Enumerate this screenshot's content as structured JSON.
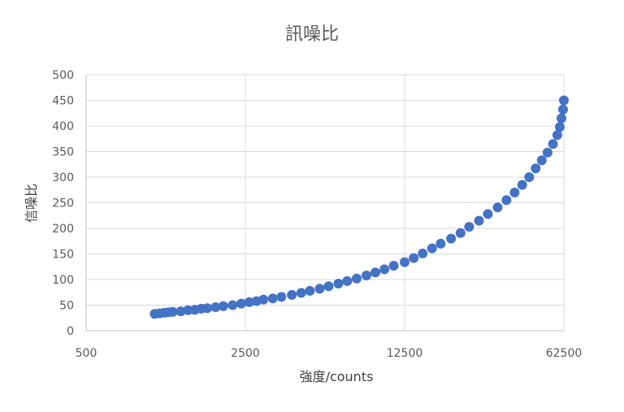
{
  "chart_data": {
    "type": "scatter",
    "title": "訊噪比",
    "xlabel": "強度/counts",
    "ylabel": "信噪比",
    "x_scale": "log5",
    "xlim": [
      500,
      62500
    ],
    "ylim": [
      0,
      500
    ],
    "x_ticks": [
      "500",
      "2500",
      "12500",
      "62500"
    ],
    "y_ticks": [
      "0",
      "50",
      "100",
      "150",
      "200",
      "250",
      "300",
      "350",
      "400",
      "450",
      "500"
    ],
    "grid": true,
    "legend": "none",
    "marker_color": "#4472C4",
    "series": [
      {
        "points": [
          [
            1000,
            33
          ],
          [
            1050,
            34
          ],
          [
            1100,
            35
          ],
          [
            1150,
            36
          ],
          [
            1200,
            37
          ],
          [
            1300,
            38
          ],
          [
            1400,
            40
          ],
          [
            1500,
            41
          ],
          [
            1600,
            43
          ],
          [
            1700,
            44
          ],
          [
            1850,
            46
          ],
          [
            2000,
            48
          ],
          [
            2200,
            50
          ],
          [
            2400,
            53
          ],
          [
            2600,
            56
          ],
          [
            2800,
            58
          ],
          [
            3000,
            61
          ],
          [
            3300,
            63
          ],
          [
            3600,
            66
          ],
          [
            4000,
            70
          ],
          [
            4400,
            74
          ],
          [
            4800,
            78
          ],
          [
            5300,
            82
          ],
          [
            5800,
            87
          ],
          [
            6400,
            92
          ],
          [
            7000,
            97
          ],
          [
            7700,
            102
          ],
          [
            8500,
            108
          ],
          [
            9300,
            114
          ],
          [
            10200,
            120
          ],
          [
            11200,
            127
          ],
          [
            12500,
            134
          ],
          [
            13700,
            142
          ],
          [
            15000,
            151
          ],
          [
            16500,
            161
          ],
          [
            18000,
            170
          ],
          [
            20000,
            180
          ],
          [
            22000,
            191
          ],
          [
            24000,
            203
          ],
          [
            26500,
            215
          ],
          [
            29000,
            228
          ],
          [
            32000,
            241
          ],
          [
            35000,
            255
          ],
          [
            38000,
            270
          ],
          [
            41000,
            285
          ],
          [
            44000,
            300
          ],
          [
            47000,
            317
          ],
          [
            50000,
            333
          ],
          [
            53000,
            348
          ],
          [
            56000,
            365
          ],
          [
            58500,
            382
          ],
          [
            60000,
            398
          ],
          [
            61000,
            415
          ],
          [
            62000,
            432
          ],
          [
            62500,
            450
          ]
        ]
      }
    ]
  }
}
